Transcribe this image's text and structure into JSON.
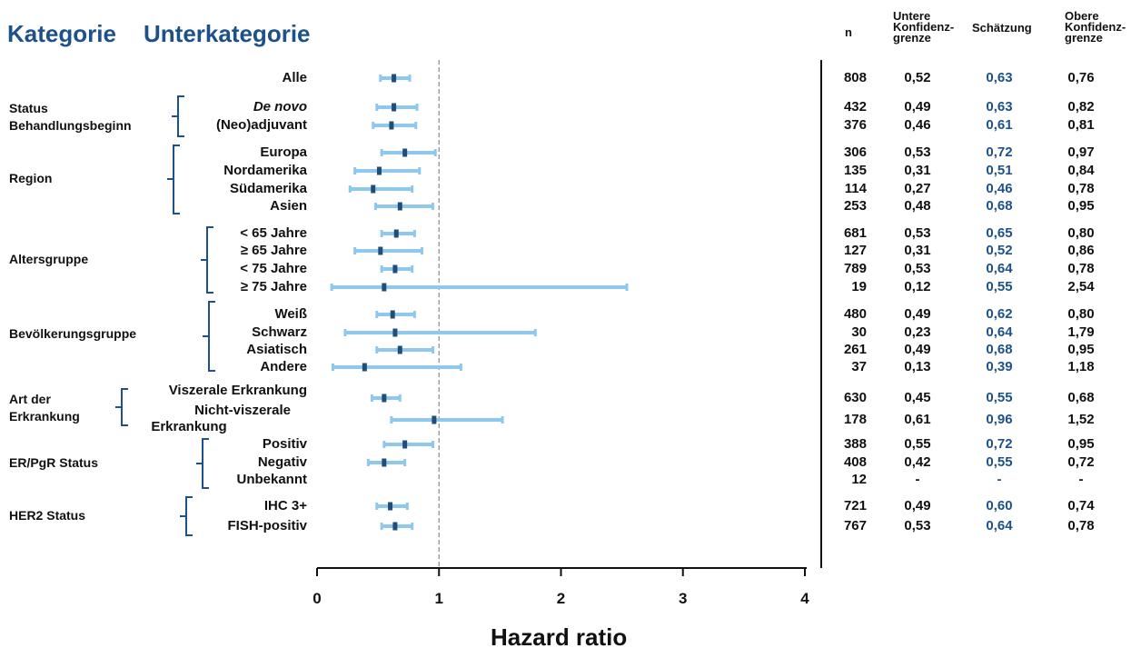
{
  "header": {
    "kategorie": "Kategorie",
    "unterkategorie": "Unterkategorie",
    "col_n": "n",
    "col_lower": [
      "Untere",
      "Konfidenz-",
      "grenze"
    ],
    "col_estimate": "Schätzung",
    "col_upper": [
      "Obere",
      "Konfidenz-",
      "grenze"
    ]
  },
  "categories": [
    {
      "label": [
        "Status",
        "Behandlungsbeginn"
      ]
    },
    {
      "label": [
        "Region"
      ]
    },
    {
      "label": [
        "Altersgruppe"
      ]
    },
    {
      "label": [
        "Bevölkerungsgruppe"
      ]
    },
    {
      "label": [
        "Art der",
        "Erkrankung"
      ]
    },
    {
      "label": [
        "ER/PgR Status"
      ]
    },
    {
      "label": [
        "HER2 Status"
      ]
    }
  ],
  "rows": [
    {
      "label": "Alle",
      "n": "808",
      "lower": "0,52",
      "est": "0,63",
      "upper": "0,76"
    },
    {
      "label": "De novo",
      "n": "432",
      "lower": "0,49",
      "est": "0,63",
      "upper": "0,82"
    },
    {
      "label": "(Neo)adjuvant",
      "n": "376",
      "lower": "0,46",
      "est": "0,61",
      "upper": "0,81"
    },
    {
      "label": "Europa",
      "n": "306",
      "lower": "0,53",
      "est": "0,72",
      "upper": "0,97"
    },
    {
      "label": "Nordamerika",
      "n": "135",
      "lower": "0,31",
      "est": "0,51",
      "upper": "0,84"
    },
    {
      "label": "Südamerika",
      "n": "114",
      "lower": "0,27",
      "est": "0,46",
      "upper": "0,78"
    },
    {
      "label": "Asien",
      "n": "253",
      "lower": "0,48",
      "est": "0,68",
      "upper": "0,95"
    },
    {
      "label": "< 65 Jahre",
      "n": "681",
      "lower": "0,53",
      "est": "0,65",
      "upper": "0,80"
    },
    {
      "label": "≥ 65 Jahre",
      "n": "127",
      "lower": "0,31",
      "est": "0,52",
      "upper": "0,86"
    },
    {
      "label": "< 75 Jahre",
      "n": "789",
      "lower": "0,53",
      "est": "0,64",
      "upper": "0,78"
    },
    {
      "label": "≥ 75 Jahre",
      "n": "19",
      "lower": "0,12",
      "est": "0,55",
      "upper": "2,54"
    },
    {
      "label": "Weiß",
      "n": "480",
      "lower": "0,49",
      "est": "0,62",
      "upper": "0,80"
    },
    {
      "label": "Schwarz",
      "n": "30",
      "lower": "0,23",
      "est": "0,64",
      "upper": "1,79"
    },
    {
      "label": "Asiatisch",
      "n": "261",
      "lower": "0,49",
      "est": "0,68",
      "upper": "0,95"
    },
    {
      "label": "Andere",
      "n": "37",
      "lower": "0,13",
      "est": "0,39",
      "upper": "1,18"
    },
    {
      "label": [
        "Viszerale Erkrankung"
      ],
      "n": "630",
      "lower": "0,45",
      "est": "0,55",
      "upper": "0,68"
    },
    {
      "label": [
        "Nicht-viszerale",
        "Erkrankung"
      ],
      "n": "178",
      "lower": "0,61",
      "est": "0,96",
      "upper": "1,52"
    },
    {
      "label": "Positiv",
      "n": "388",
      "lower": "0,55",
      "est": "0,72",
      "upper": "0,95"
    },
    {
      "label": "Negativ",
      "n": "408",
      "lower": "0,42",
      "est": "0,55",
      "upper": "0,72"
    },
    {
      "label": "Unbekannt",
      "n": "12",
      "lower": "-",
      "est": "-",
      "upper": "-"
    },
    {
      "label": "IHC 3+",
      "n": "721",
      "lower": "0,49",
      "est": "0,60",
      "upper": "0,74"
    },
    {
      "label": "FISH-positiv",
      "n": "767",
      "lower": "0,53",
      "est": "0,64",
      "upper": "0,78"
    }
  ],
  "chart_data": {
    "type": "forest",
    "xlabel": "Hazard ratio",
    "xlim": [
      0,
      4
    ],
    "xticks": [
      "0",
      "1",
      "2",
      "3",
      "4"
    ],
    "reference_line": 1,
    "points": [
      {
        "row": "Alle",
        "est": 0.63,
        "lower": 0.52,
        "upper": 0.76
      },
      {
        "row": "De novo",
        "est": 0.63,
        "lower": 0.49,
        "upper": 0.82
      },
      {
        "row": "(Neo)adjuvant",
        "est": 0.61,
        "lower": 0.46,
        "upper": 0.81
      },
      {
        "row": "Europa",
        "est": 0.72,
        "lower": 0.53,
        "upper": 0.97
      },
      {
        "row": "Nordamerika",
        "est": 0.51,
        "lower": 0.31,
        "upper": 0.84
      },
      {
        "row": "Südamerika",
        "est": 0.46,
        "lower": 0.27,
        "upper": 0.78
      },
      {
        "row": "Asien",
        "est": 0.68,
        "lower": 0.48,
        "upper": 0.95
      },
      {
        "row": "< 65 Jahre",
        "est": 0.65,
        "lower": 0.53,
        "upper": 0.8
      },
      {
        "row": "≥ 65 Jahre",
        "est": 0.52,
        "lower": 0.31,
        "upper": 0.86
      },
      {
        "row": "< 75 Jahre",
        "est": 0.64,
        "lower": 0.53,
        "upper": 0.78
      },
      {
        "row": "≥ 75 Jahre",
        "est": 0.55,
        "lower": 0.12,
        "upper": 2.54
      },
      {
        "row": "Weiß",
        "est": 0.62,
        "lower": 0.49,
        "upper": 0.8
      },
      {
        "row": "Schwarz",
        "est": 0.64,
        "lower": 0.23,
        "upper": 1.79
      },
      {
        "row": "Asiatisch",
        "est": 0.68,
        "lower": 0.49,
        "upper": 0.95
      },
      {
        "row": "Andere",
        "est": 0.39,
        "lower": 0.13,
        "upper": 1.18
      },
      {
        "row": "Viszerale Erkrankung",
        "est": 0.55,
        "lower": 0.45,
        "upper": 0.68
      },
      {
        "row": "Nicht-viszerale Erkrankung",
        "est": 0.96,
        "lower": 0.61,
        "upper": 1.52
      },
      {
        "row": "Positiv",
        "est": 0.72,
        "lower": 0.55,
        "upper": 0.95
      },
      {
        "row": "Negativ",
        "est": 0.55,
        "lower": 0.42,
        "upper": 0.72
      },
      {
        "row": "IHC 3+",
        "est": 0.6,
        "lower": 0.49,
        "upper": 0.74
      },
      {
        "row": "FISH-positiv",
        "est": 0.64,
        "lower": 0.53,
        "upper": 0.78
      }
    ],
    "colors": {
      "ci": "#8ec8ee",
      "estimate": "#1f4e79",
      "header": "#1d5189"
    }
  }
}
